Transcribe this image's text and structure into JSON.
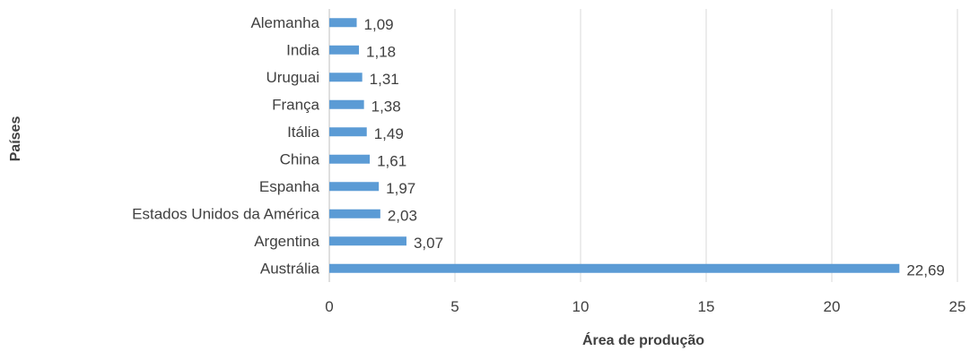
{
  "chart_data": {
    "type": "bar",
    "orientation": "horizontal",
    "categories": [
      "Alemanha",
      "India",
      "Uruguai",
      "França",
      "Itália",
      "China",
      "Espanha",
      "Estados Unidos da América",
      "Argentina",
      "Austrália"
    ],
    "values": [
      1.09,
      1.18,
      1.31,
      1.38,
      1.49,
      1.61,
      1.97,
      2.03,
      3.07,
      22.69
    ],
    "data_labels": [
      "1,09",
      "1,18",
      "1,31",
      "1,38",
      "1,49",
      "1,61",
      "1,97",
      "2,03",
      "3,07",
      "22,69"
    ],
    "xlabel": "Área de produção",
    "ylabel": "Países",
    "xlim": [
      0,
      25
    ],
    "xticks": [
      0,
      5,
      10,
      15,
      20,
      25
    ],
    "xtick_labels": [
      "0",
      "5",
      "10",
      "15",
      "20",
      "25"
    ],
    "grid": "vertical",
    "legend": "none",
    "bar_color": "#5b9bd5"
  }
}
